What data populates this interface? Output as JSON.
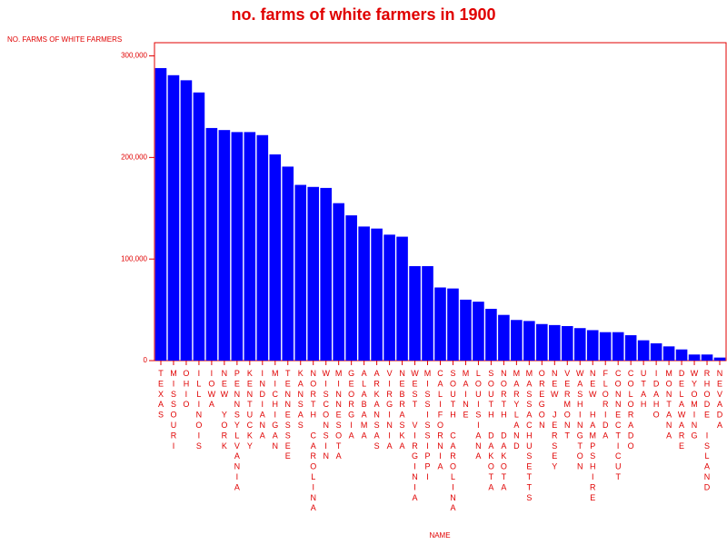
{
  "chart_data": {
    "type": "bar",
    "title": "no. farms of white farmers in 1900",
    "y_label": "NO. FARMS OF WHITE FARMERS",
    "x_label": "NAME",
    "categories": [
      "TEXAS",
      "MISSOURI",
      "OHIO",
      "ILLINOIS",
      "IOWA",
      "NEW YORK",
      "PENNSYLVANIA",
      "KENTUCKY",
      "INDIANA",
      "MICHIGAN",
      "TENNESSEE",
      "KANSAS",
      "NORTH CAROLINA",
      "WISCONSIN",
      "MINNESOTA",
      "GEORGIA",
      "ALABAMA",
      "ARKANSAS",
      "VIRGINIA",
      "NEBRASKA",
      "WEST VIRGINIA",
      "MISSISSIPPI",
      "CALIFORNIA",
      "SOUTH CAROLINA",
      "MAINE",
      "LOUISIANA",
      "SOUTH DAKOTA",
      "NORTH DAKOTA",
      "MARYLAND",
      "MASSACHUSETTS",
      "OREGON",
      "NEW JERSEY",
      "VERMONT",
      "WASHINGTON",
      "NEW HAMPSHIRE",
      "FLORIDA",
      "CONNECTICUT",
      "COLORADO",
      "UTAH",
      "IDAHO",
      "MONTANA",
      "DELAWARE",
      "WYOMING",
      "RHODE ISLAND",
      "NEVADA"
    ],
    "values": [
      288000,
      281000,
      276000,
      264000,
      229000,
      227000,
      225000,
      225000,
      222000,
      203000,
      191000,
      173000,
      171000,
      170000,
      155000,
      143000,
      132000,
      130000,
      124000,
      122000,
      93000,
      93000,
      72000,
      71000,
      60000,
      58000,
      51000,
      45000,
      40000,
      39000,
      36000,
      35000,
      34000,
      32000,
      30000,
      28000,
      28000,
      25000,
      20000,
      17000,
      14000,
      11000,
      6000,
      6000,
      3000
    ],
    "color": "#0000ff",
    "ylim": [
      0,
      313000
    ],
    "yticks": [
      0,
      {
        "value": 100000,
        "label": "100,000"
      },
      {
        "value": 200000,
        "label": "200,000"
      },
      {
        "value": 300000,
        "label": "300,000"
      }
    ]
  }
}
